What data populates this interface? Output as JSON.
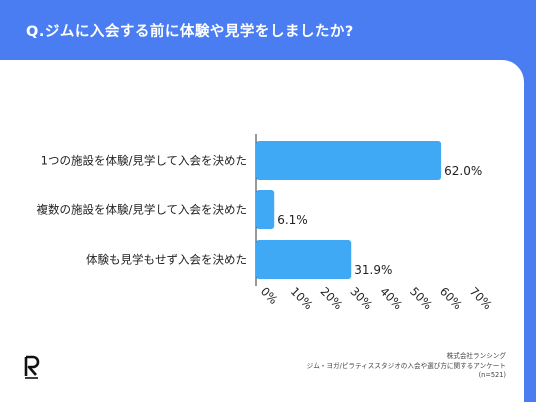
{
  "header": {
    "title": "Q.ジムに入会する前に体験や見学をしましたか?"
  },
  "chart_data": {
    "type": "bar",
    "orientation": "horizontal",
    "categories": [
      "1つの施設を体験/見学して入会を決めた",
      "複数の施設を体験/見学して入会を決めた",
      "体験も見学もせず入会を決めた"
    ],
    "values": [
      62.0,
      6.1,
      31.9
    ],
    "value_labels": [
      "62.0%",
      "6.1%",
      "31.9%"
    ],
    "xlim": [
      0,
      70
    ],
    "ticks": [
      "0%",
      "10%",
      "20%",
      "30%",
      "40%",
      "50%",
      "60%",
      "70%"
    ],
    "grid": false,
    "bar_color": "#3fa9f5"
  },
  "footer": {
    "logo_icon": "ranking-r-logo",
    "source_lines": [
      "株式会社ランシング",
      "ジム・ヨガ/ピラティススタジオの入会や選び方に関するアンケート",
      "(n=521)"
    ]
  },
  "colors": {
    "background": "#4a7df2",
    "card": "#ffffff",
    "bar": "#3fa9f5",
    "text": "#222222"
  }
}
